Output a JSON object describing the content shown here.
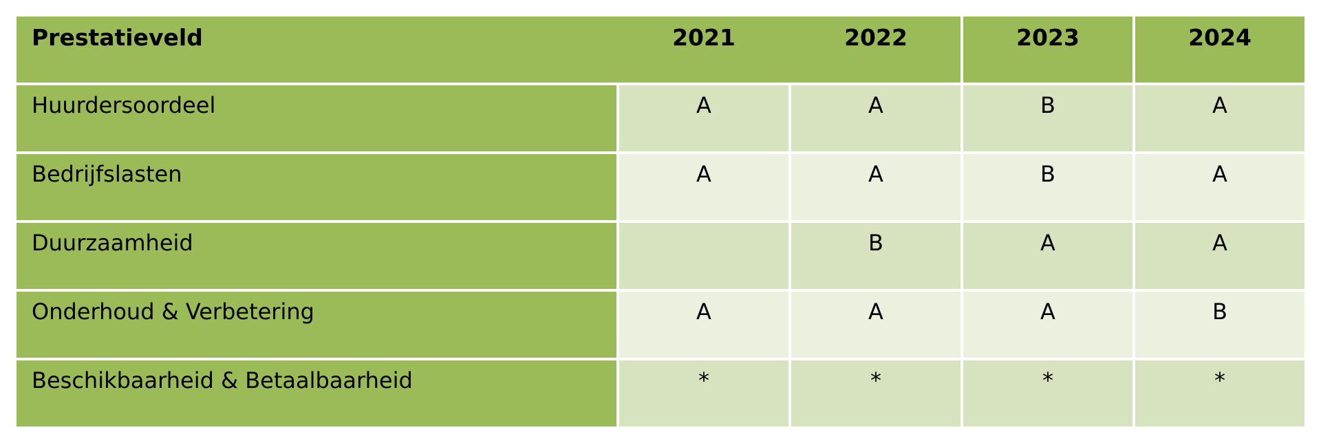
{
  "table": {
    "header": {
      "label": "Prestatieveld",
      "years": [
        "2021",
        "2022",
        "2023",
        "2024"
      ]
    },
    "rows": [
      {
        "label": "Huurdersoordeel",
        "values": [
          "A",
          "A",
          "B",
          "A"
        ]
      },
      {
        "label": "Bedrijfslasten",
        "values": [
          "A",
          "A",
          "B",
          "A"
        ]
      },
      {
        "label": "Duurzaamheid",
        "values": [
          "",
          "B",
          "A",
          "A"
        ]
      },
      {
        "label": "Onderhoud & Verbetering",
        "values": [
          "A",
          "A",
          "A",
          "B"
        ]
      },
      {
        "label": "Beschikbaarheid & Betaalbaarheid",
        "values": [
          "*",
          "*",
          "*",
          "*"
        ]
      }
    ]
  },
  "colors": {
    "header_green": "#9bbb59",
    "row_dark": "#d7e3bf",
    "row_light": "#ebf1de"
  }
}
